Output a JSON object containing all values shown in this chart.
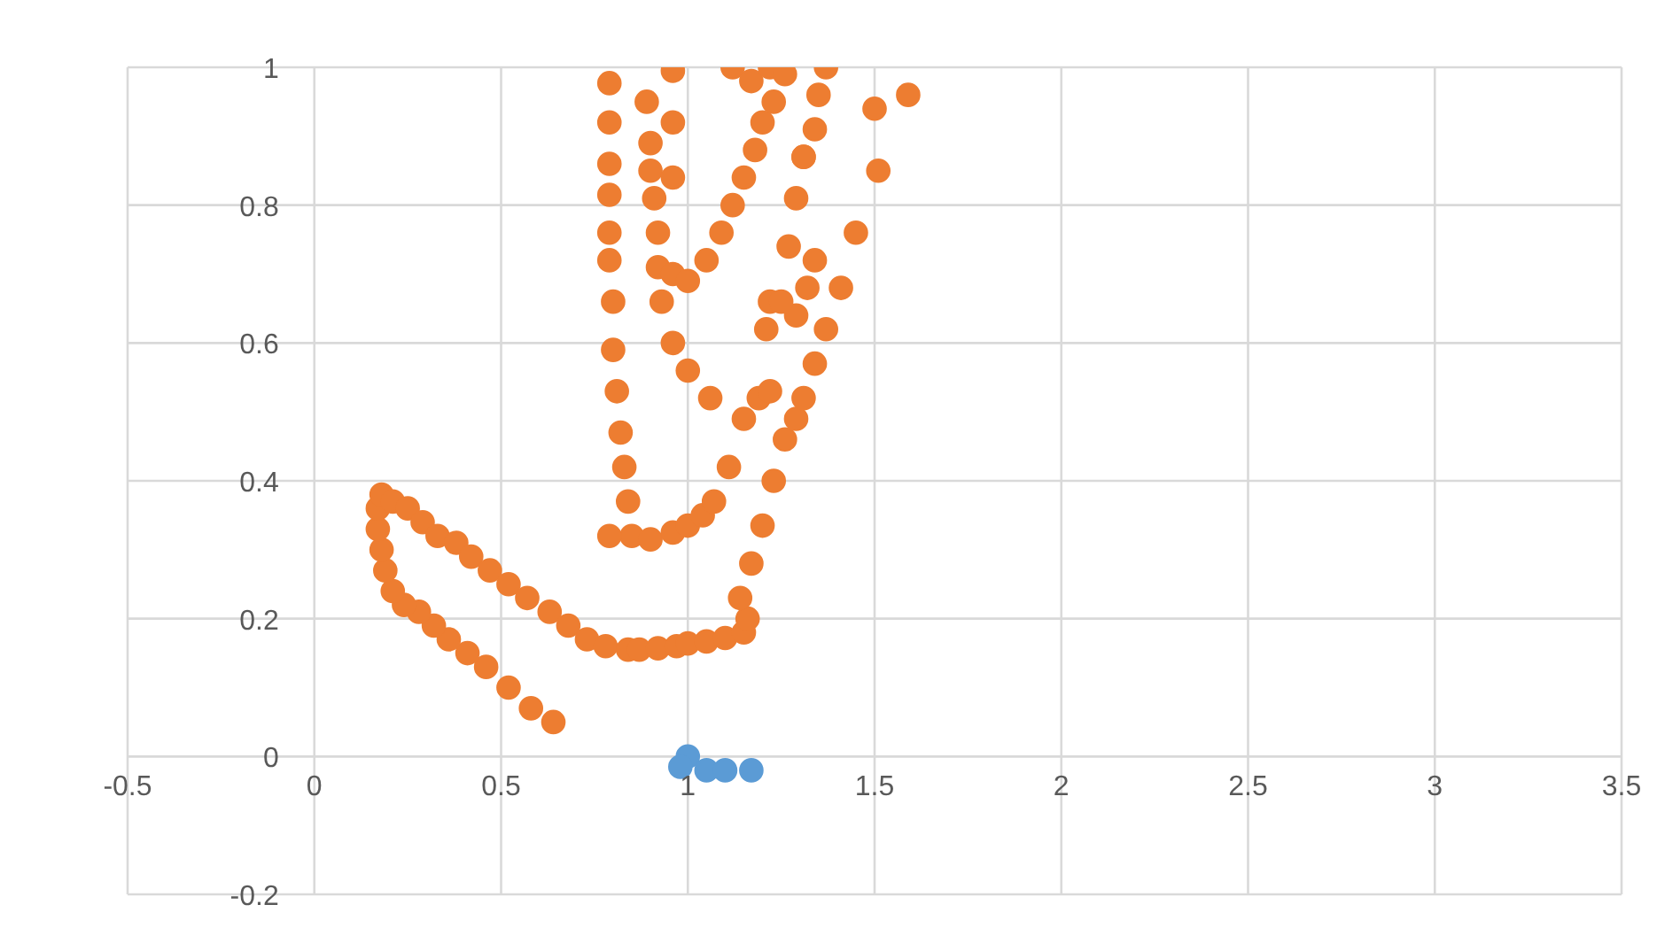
{
  "chart_data": {
    "type": "scatter",
    "xlim": [
      -0.5,
      3.5
    ],
    "xticks": [
      -0.5,
      0,
      0.5,
      1,
      1.5,
      2,
      2.5,
      3,
      3.5
    ],
    "ylim": [
      -0.2,
      1
    ],
    "yticks": [
      -0.2,
      0,
      0.2,
      0.4,
      0.6,
      0.8,
      1
    ],
    "grid": true,
    "marker": "circle",
    "series": [
      {
        "color": "#5b9bd5",
        "x": [
          1.0,
          0.98,
          1.05,
          1.1,
          1.17
        ],
        "values": [
          0.0,
          -0.015,
          -0.02,
          -0.02,
          -0.02
        ]
      },
      {
        "color": "#ed7d31",
        "x": [
          0.64,
          0.58,
          0.52,
          0.46,
          0.41,
          0.36,
          0.32,
          0.28,
          0.24,
          0.21,
          0.19,
          0.18,
          0.17,
          0.17,
          0.18,
          0.21,
          0.25,
          0.29,
          0.33,
          0.38,
          0.42,
          0.47,
          0.52,
          0.57,
          0.63,
          0.68,
          0.73,
          0.78,
          0.84,
          0.87,
          0.92,
          0.97,
          1.0,
          1.05,
          1.1,
          1.15,
          1.16,
          1.14,
          1.17,
          1.2,
          1.23,
          1.26,
          1.29,
          1.31,
          1.34,
          1.37,
          1.41,
          1.45,
          1.51,
          1.5,
          1.59,
          1.29,
          1.32,
          1.34,
          1.31,
          1.34,
          1.35,
          1.37,
          0.85,
          0.84,
          0.83,
          0.82,
          0.81,
          0.8,
          0.8,
          0.79,
          0.79,
          0.79,
          0.79,
          0.79,
          0.79,
          0.79,
          0.9,
          0.96,
          1.0,
          1.04,
          1.07,
          1.11,
          1.15,
          1.19,
          1.22,
          1.21,
          1.22,
          1.25,
          1.27,
          1.29,
          1.31,
          1.06,
          1.0,
          0.96,
          0.93,
          0.92,
          0.92,
          0.91,
          0.9,
          0.9,
          0.89,
          0.96,
          0.96,
          0.96,
          0.96,
          1.0,
          1.05,
          1.09,
          1.12,
          1.15,
          1.18,
          1.2,
          1.23,
          1.12,
          1.17,
          1.22,
          1.26
        ],
        "values": [
          0.05,
          0.07,
          0.1,
          0.13,
          0.15,
          0.17,
          0.19,
          0.21,
          0.22,
          0.24,
          0.27,
          0.3,
          0.33,
          0.36,
          0.38,
          0.37,
          0.36,
          0.34,
          0.32,
          0.31,
          0.29,
          0.27,
          0.25,
          0.23,
          0.21,
          0.19,
          0.17,
          0.16,
          0.155,
          0.155,
          0.157,
          0.16,
          0.164,
          0.167,
          0.172,
          0.18,
          0.2,
          0.23,
          0.28,
          0.335,
          0.4,
          0.46,
          0.49,
          0.52,
          0.57,
          0.62,
          0.68,
          0.76,
          0.85,
          0.94,
          0.96,
          0.64,
          0.68,
          0.72,
          0.87,
          0.91,
          0.96,
          1.0,
          0.32,
          0.37,
          0.42,
          0.47,
          0.53,
          0.59,
          0.66,
          0.72,
          0.76,
          0.815,
          0.86,
          0.92,
          0.977,
          0.32,
          0.315,
          0.325,
          0.335,
          0.35,
          0.37,
          0.42,
          0.49,
          0.52,
          0.53,
          0.62,
          0.66,
          0.66,
          0.74,
          0.81,
          0.87,
          0.52,
          0.56,
          0.6,
          0.66,
          0.71,
          0.76,
          0.81,
          0.85,
          0.89,
          0.95,
          0.995,
          0.92,
          0.84,
          0.7,
          0.69,
          0.72,
          0.76,
          0.8,
          0.84,
          0.88,
          0.92,
          0.95,
          1.0,
          0.98,
          1.0,
          0.99
        ]
      }
    ]
  }
}
